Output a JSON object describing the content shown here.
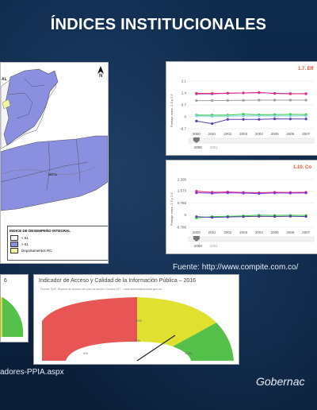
{
  "slide": {
    "title": "ÍNDICES INSTITUCIONALES",
    "source_main": "Fuente: http://www.compite.com.co/",
    "source_left": "adores-PPIA.aspx",
    "footer_right": "Gobernac"
  },
  "map": {
    "north": "N",
    "region_label": "META",
    "corner_label": "AL",
    "legend_title": "INDICE DE DESEMPEÑO INTEGRAL",
    "legend_items": [
      {
        "label": "< 61",
        "color": "#ffffff"
      },
      {
        "label": "> 61",
        "color": "#8a8fe0"
      },
      {
        "label": "Departamentos RC",
        "color": "#f2f2a0"
      }
    ]
  },
  "chart_top": {
    "title": "1.7. Eff",
    "ylabel": "Puntaje entre -2.5 y 2.5",
    "y_ticks": [
      "2.1",
      "1.4",
      "0.7",
      "0",
      "-0.7"
    ],
    "x_ticks": [
      "2000",
      "2001",
      "2002",
      "2003",
      "2004",
      "2005",
      "2006",
      "2007"
    ],
    "slider_label": "2000",
    "slider_end": "2001"
  },
  "chart_bottom": {
    "title": "1.10. Co",
    "ylabel": "Puntaje entre -2.5 y 2.5",
    "y_ticks": [
      "2.305",
      "1.573",
      "0.786",
      "0",
      "-0.786"
    ],
    "x_ticks": [
      "2000",
      "2001",
      "2002",
      "2003",
      "2004",
      "2005",
      "2006",
      "2007"
    ],
    "slider_label": "2000",
    "slider_end": "2001"
  },
  "gauge_left": {
    "title": "6"
  },
  "gauge_main": {
    "title": "Indicador de Acceso y Calidad de la Información Pública – 2016",
    "subtitle": "Fuente: DNP, Reporte de Avance del plan de acción Compes 167 – www.sistemasinpublica.gov.co/",
    "label_left": "0%",
    "label_mid": "75%",
    "label_top": "50%",
    "label_right": "100%",
    "value_pct": 75,
    "colors": {
      "red": "#e85555",
      "yellow": "#e0e030",
      "green": "#55c04a"
    }
  },
  "chart_data": [
    {
      "type": "line",
      "title": "1.7. Eff",
      "x": [
        "2000",
        "2001",
        "2002",
        "2003",
        "2004",
        "2005",
        "2006",
        "2007"
      ],
      "ylim": [
        -0.7,
        2.1
      ],
      "series": [
        {
          "color": "#8a2be2",
          "values": [
            1.35,
            1.35,
            1.38,
            1.4,
            1.42,
            1.38,
            1.36,
            1.35
          ]
        },
        {
          "color": "#e0307a",
          "values": [
            1.38,
            1.37,
            1.39,
            1.4,
            1.43,
            1.37,
            1.35,
            1.36
          ]
        },
        {
          "color": "#9aa0a6",
          "values": [
            0.95,
            0.95,
            0.96,
            0.97,
            0.98,
            0.98,
            0.98,
            0.98
          ]
        },
        {
          "color": "#2ecc40",
          "values": [
            0.1,
            0.1,
            0.1,
            0.15,
            0.12,
            0.13,
            0.14,
            0.13
          ]
        },
        {
          "color": "#7fd3e0",
          "values": [
            0.05,
            0.03,
            0.04,
            0.05,
            0.06,
            0.05,
            0.05,
            0.06
          ]
        },
        {
          "color": "#5b3fa8",
          "values": [
            -0.25,
            -0.4,
            -0.15,
            -0.15,
            -0.15,
            -0.12,
            -0.13,
            -0.13
          ]
        }
      ]
    },
    {
      "type": "line",
      "title": "1.10. Co",
      "x": [
        "2000",
        "2001",
        "2002",
        "2003",
        "2004",
        "2005",
        "2006",
        "2007"
      ],
      "ylim": [
        -0.786,
        2.305
      ],
      "series": [
        {
          "color": "#e0307a",
          "values": [
            1.55,
            1.48,
            1.5,
            1.47,
            1.45,
            1.48,
            1.47,
            1.48
          ]
        },
        {
          "color": "#8a2be2",
          "values": [
            1.45,
            1.42,
            1.45,
            1.43,
            1.4,
            1.44,
            1.43,
            1.44
          ]
        },
        {
          "color": "#2ecc40",
          "values": [
            -0.18,
            -0.1,
            -0.08,
            -0.05,
            0.0,
            -0.02,
            -0.01,
            -0.02
          ]
        },
        {
          "color": "#5b3fa8",
          "values": [
            -0.1,
            -0.15,
            -0.12,
            -0.1,
            -0.08,
            -0.09,
            -0.08,
            -0.09
          ]
        }
      ]
    }
  ]
}
